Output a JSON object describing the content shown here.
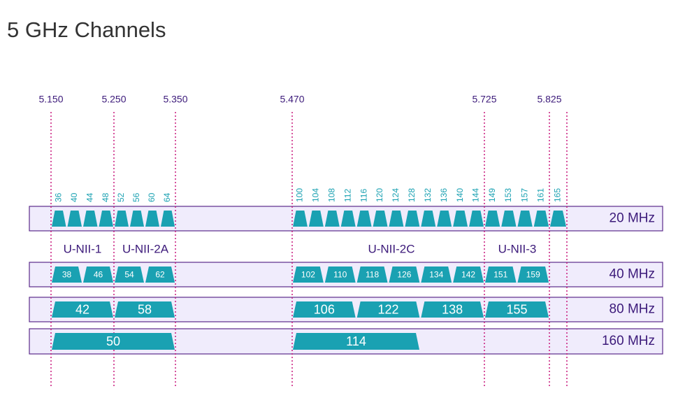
{
  "title": "5 GHz Channels",
  "frequencies": [
    "5.150",
    "5.250",
    "5.350",
    "5.470",
    "5.725",
    "5.825"
  ],
  "bands": [
    "U-NII-1",
    "U-NII-2A",
    "U-NII-2C",
    "U-NII-3"
  ],
  "rows": [
    {
      "label": "20 MHz",
      "groups": [
        [
          36,
          40,
          44,
          48
        ],
        [
          52,
          56,
          60,
          64
        ],
        [
          100,
          104,
          108,
          112,
          116,
          120,
          124,
          128,
          132,
          136,
          140,
          144
        ],
        [
          149,
          153,
          157,
          161
        ],
        [
          165
        ]
      ]
    },
    {
      "label": "40 MHz",
      "groups": [
        [
          38,
          46
        ],
        [
          54,
          62
        ],
        [
          102,
          110,
          118,
          126,
          134,
          142
        ],
        [
          151,
          159
        ]
      ]
    },
    {
      "label": "80 MHz",
      "groups": [
        [
          42
        ],
        [
          58
        ],
        [
          106,
          122,
          138
        ],
        [
          155
        ]
      ]
    },
    {
      "label": "160 MHz",
      "groups": [
        [
          50
        ],
        [
          114
        ]
      ]
    }
  ]
}
